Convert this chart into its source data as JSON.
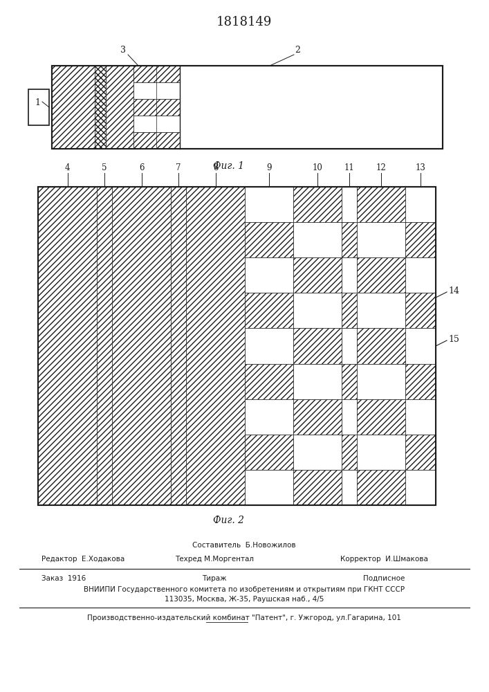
{
  "patent_number": "1818149",
  "fig1_caption": "Фиг. 1",
  "fig2_caption": "Фиг. 2",
  "footer": {
    "line1_center": "Составитель  Б.Новожилов",
    "line2_left": "Редактор  Е.Ходакова",
    "line2_center": "Техред М.Моргентал",
    "line2_right": "Корректор  И.Шмакова",
    "line3_left": "Заказ  1916",
    "line3_center": "Тираж",
    "line3_right": "Подписное",
    "line4": "ВНИИПИ Государственного комитета по изобретениям и открытиям при ГКНТ СССР",
    "line5": "113035, Москва, Ж-35, Раушская наб., 4/5",
    "line6": "Производственно-издательский комбинат \"Патент\", г. Ужгород, ул.Гагарина, 101"
  },
  "line_color": "#1a1a1a"
}
